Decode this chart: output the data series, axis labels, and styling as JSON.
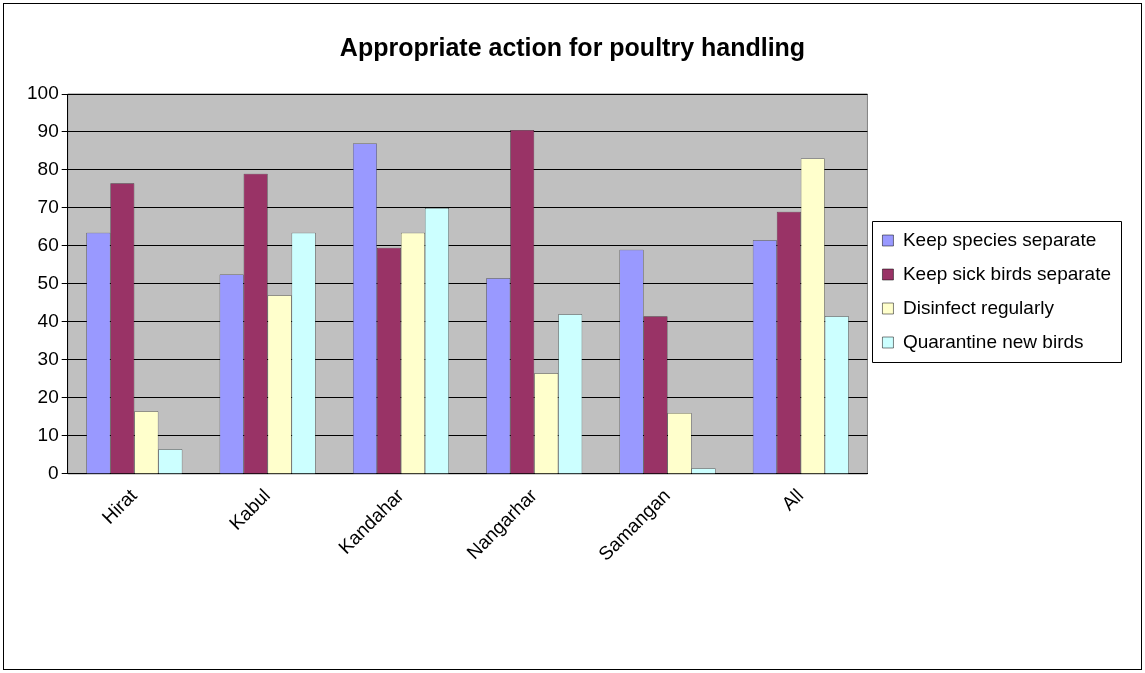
{
  "chart_data": {
    "type": "bar",
    "title": "Appropriate action for poultry handling",
    "categories": [
      "Hirat",
      "Kabul",
      "Kandahar",
      "Nangarhar",
      "Samangan",
      "All"
    ],
    "series": [
      {
        "name": "Keep species separate",
        "color": "#9999ff",
        "values": [
          63.5,
          52.5,
          87,
          51.5,
          59,
          61.5
        ]
      },
      {
        "name": "Keep sick birds separate",
        "color": "#993366",
        "values": [
          76.5,
          79,
          59.5,
          90.5,
          41.5,
          69
        ]
      },
      {
        "name": "Disinfect regularly",
        "color": "#ffffcc",
        "values": [
          16.5,
          47,
          63.5,
          26.5,
          16,
          83
        ]
      },
      {
        "name": "Quarantine new birds",
        "color": "#ccffff",
        "values": [
          6.5,
          63.5,
          70,
          42,
          1.5,
          41.5
        ]
      }
    ],
    "ylim": [
      0,
      100
    ],
    "yticks": [
      0,
      10,
      20,
      30,
      40,
      50,
      60,
      70,
      80,
      90,
      100
    ],
    "grid": "y",
    "legend": "right"
  }
}
